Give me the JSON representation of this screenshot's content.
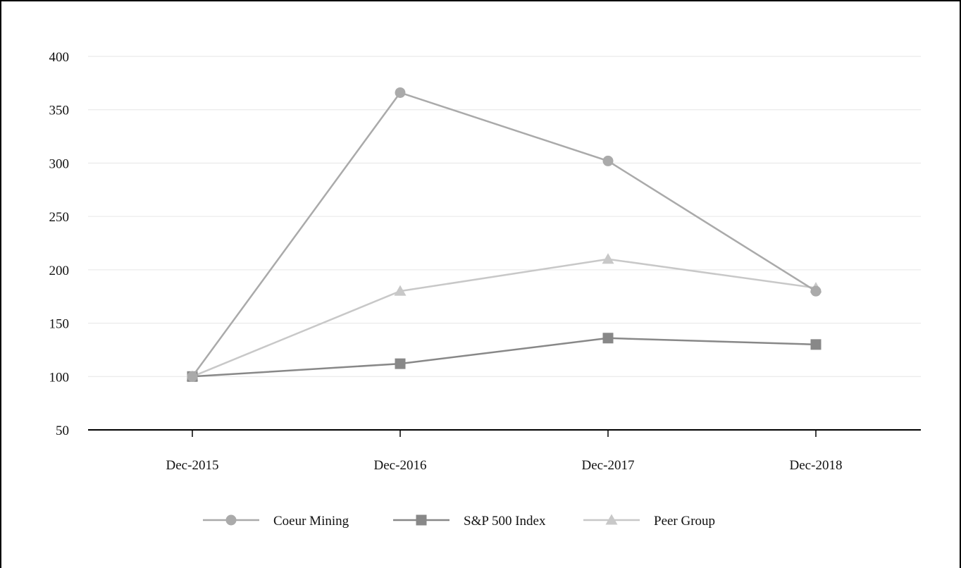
{
  "chart_data": {
    "type": "line",
    "title": "",
    "xlabel": "",
    "ylabel": "",
    "categories": [
      "Dec-2015",
      "Dec-2016",
      "Dec-2017",
      "Dec-2018"
    ],
    "ylim": [
      50,
      400
    ],
    "yticks": [
      50,
      100,
      150,
      200,
      250,
      300,
      350,
      400
    ],
    "grid": true,
    "legend_position": "bottom",
    "series": [
      {
        "name": "Coeur Mining",
        "values": [
          100,
          366,
          302,
          180
        ],
        "color": "#aaaaaa",
        "marker": "circle"
      },
      {
        "name": "S&P 500 Index",
        "values": [
          100,
          112,
          136,
          130
        ],
        "color": "#888888",
        "marker": "square"
      },
      {
        "name": "Peer Group",
        "values": [
          100,
          180,
          210,
          183
        ],
        "color": "#c8c8c8",
        "marker": "triangle"
      }
    ]
  }
}
